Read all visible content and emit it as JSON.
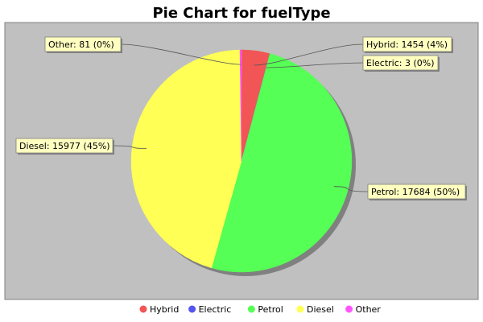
{
  "chart_data": {
    "type": "pie",
    "title": "Pie Chart for fuelType",
    "slices": [
      {
        "name": "Hybrid",
        "value": 1454,
        "percent_label": "4%",
        "label": "Hybrid: 1454 (4%)",
        "color": "#f25555"
      },
      {
        "name": "Electric",
        "value": 3,
        "percent_label": "0%",
        "label": "Electric: 3 (0%)",
        "color": "#5555f2"
      },
      {
        "name": "Petrol",
        "value": 17684,
        "percent_label": "50%",
        "label": "Petrol: 17684 (50%)",
        "color": "#55ff55"
      },
      {
        "name": "Diesel",
        "value": 15977,
        "percent_label": "45%",
        "label": "Diesel: 15977 (45%)",
        "color": "#ffff55"
      },
      {
        "name": "Other",
        "value": 81,
        "percent_label": "0%",
        "label": "Other: 81 (0%)",
        "color": "#ff55ff"
      }
    ],
    "legend": {
      "placement": "bottom",
      "entries": [
        "Hybrid",
        "Electric",
        "Petrol",
        "Diesel",
        "Other"
      ]
    },
    "plot_background": "#c0c0c0",
    "label_background": "#ffffc0"
  }
}
